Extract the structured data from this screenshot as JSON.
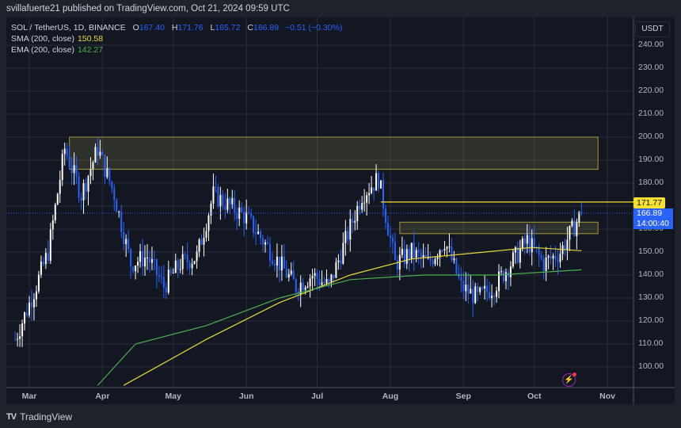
{
  "header": {
    "publisher": "svillafuerte21 published on TradingView.com, Oct 21, 2024 09:59 UTC"
  },
  "legend": {
    "symbol": "SOL / TetherUS, 1D, BINANCE",
    "open_label": "O",
    "open": "167.40",
    "high_label": "H",
    "high": "171.76",
    "low_label": "L",
    "low": "165.72",
    "close_label": "C",
    "close": "166.89",
    "change": "−0.51 (−0.30%)",
    "sma_label": "SMA (200, close)",
    "sma_value": "150.58",
    "ema_label": "EMA (200, close)",
    "ema_value": "142.27"
  },
  "price_axis": {
    "currency": "USDT",
    "ticks": [
      "240.00",
      "230.00",
      "220.00",
      "210.00",
      "200.00",
      "190.00",
      "180.00",
      "170.00",
      "160.00",
      "150.00",
      "140.00",
      "130.00",
      "120.00",
      "110.00",
      "100.00"
    ],
    "resistance_tag": "171.77",
    "current_price_tag": "166.89",
    "countdown": "14:00:40"
  },
  "time_axis": {
    "ticks": [
      "Mar",
      "Apr",
      "May",
      "Jun",
      "Jul",
      "Aug",
      "Sep",
      "Oct",
      "Nov"
    ]
  },
  "footer": {
    "logo": "TV",
    "brand": "TradingView"
  },
  "colors": {
    "background": "#131722",
    "up_candle": "#ffffff",
    "down_candle": "#2962ff",
    "sma": "#e7d93b",
    "ema": "#4caf50",
    "zone_border": "#a39a3a",
    "resistance_line": "#f7e02e",
    "grid": "#2a2e39"
  },
  "chart_data": {
    "type": "candlestick",
    "title": "SOL / TetherUS, 1D, BINANCE",
    "xlabel": "",
    "ylabel": "USDT",
    "ylim": [
      92,
      248
    ],
    "grid": true,
    "x_ticks": [
      "Mar",
      "Apr",
      "May",
      "Jun",
      "Jul",
      "Aug",
      "Sep",
      "Oct",
      "Nov"
    ],
    "y_ticks": [
      100,
      110,
      120,
      130,
      140,
      150,
      160,
      170,
      180,
      190,
      200,
      210,
      220,
      230,
      240
    ],
    "last_ohlc": {
      "open": 167.4,
      "high": 171.76,
      "low": 165.72,
      "close": 166.89,
      "change": -0.51,
      "change_pct": -0.3
    },
    "closes_weekly_approx": [
      {
        "date": "2024-02-24",
        "close": 112
      },
      {
        "date": "2024-03-02",
        "close": 130
      },
      {
        "date": "2024-03-09",
        "close": 150
      },
      {
        "date": "2024-03-16",
        "close": 195
      },
      {
        "date": "2024-03-23",
        "close": 175
      },
      {
        "date": "2024-03-30",
        "close": 195
      },
      {
        "date": "2024-04-06",
        "close": 175
      },
      {
        "date": "2024-04-13",
        "close": 145
      },
      {
        "date": "2024-04-20",
        "close": 148
      },
      {
        "date": "2024-04-27",
        "close": 135
      },
      {
        "date": "2024-05-04",
        "close": 145
      },
      {
        "date": "2024-05-11",
        "close": 148
      },
      {
        "date": "2024-05-18",
        "close": 175
      },
      {
        "date": "2024-05-25",
        "close": 170
      },
      {
        "date": "2024-06-01",
        "close": 165
      },
      {
        "date": "2024-06-08",
        "close": 155
      },
      {
        "date": "2024-06-15",
        "close": 145
      },
      {
        "date": "2024-06-22",
        "close": 135
      },
      {
        "date": "2024-06-29",
        "close": 140
      },
      {
        "date": "2024-07-06",
        "close": 135
      },
      {
        "date": "2024-07-13",
        "close": 155
      },
      {
        "date": "2024-07-20",
        "close": 175
      },
      {
        "date": "2024-07-27",
        "close": 182
      },
      {
        "date": "2024-08-03",
        "close": 145
      },
      {
        "date": "2024-08-10",
        "close": 150
      },
      {
        "date": "2024-08-17",
        "close": 145
      },
      {
        "date": "2024-08-24",
        "close": 155
      },
      {
        "date": "2024-08-31",
        "close": 135
      },
      {
        "date": "2024-09-07",
        "close": 130
      },
      {
        "date": "2024-09-14",
        "close": 135
      },
      {
        "date": "2024-09-21",
        "close": 145
      },
      {
        "date": "2024-09-28",
        "close": 155
      },
      {
        "date": "2024-10-05",
        "close": 145
      },
      {
        "date": "2024-10-12",
        "close": 150
      },
      {
        "date": "2024-10-21",
        "close": 166.89
      }
    ],
    "series": [
      {
        "name": "SMA (200, close)",
        "color": "#e7d93b",
        "points": [
          {
            "date": "2024-04-10",
            "value": 92
          },
          {
            "date": "2024-05-15",
            "value": 112
          },
          {
            "date": "2024-06-15",
            "value": 128
          },
          {
            "date": "2024-07-15",
            "value": 140
          },
          {
            "date": "2024-08-10",
            "value": 147
          },
          {
            "date": "2024-09-10",
            "value": 150
          },
          {
            "date": "2024-09-30",
            "value": 152
          },
          {
            "date": "2024-10-21",
            "value": 150.58
          }
        ]
      },
      {
        "name": "EMA (200, close)",
        "color": "#4caf50",
        "points": [
          {
            "date": "2024-03-30",
            "value": 92
          },
          {
            "date": "2024-04-15",
            "value": 110
          },
          {
            "date": "2024-05-15",
            "value": 118
          },
          {
            "date": "2024-06-15",
            "value": 130
          },
          {
            "date": "2024-07-15",
            "value": 138
          },
          {
            "date": "2024-08-15",
            "value": 140
          },
          {
            "date": "2024-09-15",
            "value": 140
          },
          {
            "date": "2024-10-21",
            "value": 142.27
          }
        ]
      }
    ],
    "annotations": [
      {
        "type": "zone",
        "label": "upper supply zone",
        "from_date": "2024-03-18",
        "to_date": "2024-10-28",
        "low": 186,
        "high": 200
      },
      {
        "type": "zone",
        "label": "lower zone",
        "from_date": "2024-08-05",
        "to_date": "2024-10-28",
        "low": 158,
        "high": 163
      },
      {
        "type": "hline",
        "label": "resistance",
        "from_date": "2024-07-28",
        "value": 171.77
      },
      {
        "type": "hline",
        "label": "current price",
        "style": "dotted",
        "value": 166.89
      }
    ]
  }
}
